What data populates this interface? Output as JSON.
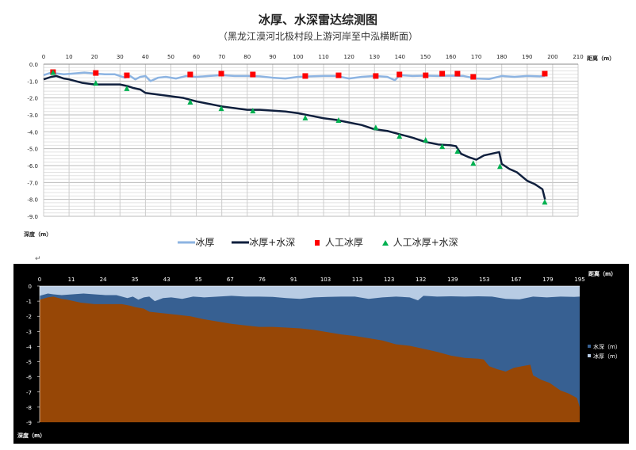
{
  "chart_data": [
    {
      "type": "line",
      "title": "冰厚、水深雷达综测图",
      "subtitle": "（黑龙江漠河北极村段上游河岸至中泓横断面）",
      "xlabel": "距离（m）",
      "ylabel": "深度（m）",
      "xlim": [
        0,
        210
      ],
      "ylim": [
        -9,
        0
      ],
      "xticks": [
        0,
        10,
        20,
        30,
        40,
        50,
        60,
        70,
        80,
        90,
        100,
        110,
        120,
        130,
        140,
        150,
        160,
        170,
        180,
        190,
        200,
        210
      ],
      "yticks": [
        "0.0",
        "-1.0",
        "-2.0",
        "-3.0",
        "-4.0",
        "-5.0",
        "-6.0",
        "-7.0",
        "-8.0",
        "-9.0"
      ],
      "grid": true,
      "legend_position": "bottom",
      "series": [
        {
          "name": "冰厚",
          "type": "line",
          "color": "#8db4e2",
          "x": [
            0,
            3,
            5,
            8,
            12,
            16,
            20,
            24,
            28,
            32,
            34,
            36,
            38,
            40,
            42,
            45,
            48,
            52,
            56,
            60,
            65,
            70,
            75,
            80,
            85,
            90,
            95,
            100,
            105,
            110,
            115,
            120,
            125,
            130,
            135,
            138,
            140,
            145,
            150,
            155,
            160,
            165,
            170,
            175,
            180,
            185,
            190,
            195,
            197
          ],
          "y": [
            -0.65,
            -0.5,
            -0.55,
            -0.6,
            -0.55,
            -0.5,
            -0.55,
            -0.6,
            -0.6,
            -0.8,
            -0.7,
            -0.9,
            -0.75,
            -0.7,
            -1.0,
            -0.8,
            -0.75,
            -0.85,
            -0.7,
            -0.75,
            -0.7,
            -0.65,
            -0.7,
            -0.7,
            -0.72,
            -0.8,
            -0.85,
            -0.75,
            -0.72,
            -0.7,
            -0.7,
            -0.85,
            -0.75,
            -0.7,
            -0.75,
            -0.95,
            -0.65,
            -0.7,
            -0.68,
            -0.7,
            -0.68,
            -0.7,
            -0.85,
            -0.88,
            -0.7,
            -0.75,
            -0.7,
            -0.72,
            -0.7
          ]
        },
        {
          "name": "冰厚+水深",
          "type": "line",
          "color": "#0f1f3d",
          "x": [
            0,
            3,
            5,
            8,
            10,
            15,
            20,
            25,
            30,
            33,
            35,
            38,
            40,
            45,
            50,
            55,
            60,
            65,
            70,
            75,
            80,
            85,
            90,
            95,
            100,
            105,
            110,
            115,
            120,
            125,
            130,
            135,
            140,
            145,
            150,
            155,
            160,
            162,
            164,
            167,
            170,
            173,
            176,
            179,
            180,
            183,
            186,
            190,
            193,
            196,
            197
          ],
          "y": [
            -0.9,
            -0.75,
            -0.7,
            -0.85,
            -0.9,
            -1.1,
            -1.2,
            -1.2,
            -1.2,
            -1.3,
            -1.4,
            -1.5,
            -1.7,
            -1.8,
            -1.9,
            -2.0,
            -2.2,
            -2.35,
            -2.5,
            -2.6,
            -2.7,
            -2.7,
            -2.75,
            -2.8,
            -2.9,
            -3.05,
            -3.2,
            -3.3,
            -3.45,
            -3.6,
            -3.85,
            -3.95,
            -4.15,
            -4.35,
            -4.6,
            -4.75,
            -4.8,
            -4.85,
            -5.3,
            -5.5,
            -5.65,
            -5.4,
            -5.3,
            -5.2,
            -5.9,
            -6.2,
            -6.4,
            -6.9,
            -7.1,
            -7.4,
            -8.0
          ]
        },
        {
          "name": "人工冰厚",
          "type": "scatter",
          "marker": "square",
          "color": "#ff0000",
          "x": [
            3.7,
            20.5,
            32.7,
            57.6,
            69.8,
            82.2,
            102.8,
            115.9,
            130.5,
            139.8,
            150.1,
            156.6,
            162.6,
            168.8,
            196.9
          ],
          "y": [
            -0.47,
            -0.52,
            -0.66,
            -0.61,
            -0.56,
            -0.61,
            -0.7,
            -0.66,
            -0.7,
            -0.61,
            -0.66,
            -0.56,
            -0.56,
            -0.75,
            -0.56
          ]
        },
        {
          "name": "人工冰厚+水深",
          "type": "scatter",
          "marker": "triangle",
          "color": "#00b050",
          "x": [
            3.7,
            20.5,
            32.7,
            57.6,
            69.8,
            82.2,
            102.8,
            115.9,
            130.5,
            139.8,
            150.1,
            156.6,
            162.6,
            168.8,
            179.3,
            196.9
          ],
          "y": [
            -0.5,
            -1.13,
            -1.45,
            -2.25,
            -2.63,
            -2.77,
            -3.19,
            -3.33,
            -3.76,
            -4.27,
            -4.5,
            -4.88,
            -5.16,
            -5.87,
            -6.06,
            -8.17
          ]
        }
      ]
    },
    {
      "type": "area",
      "xlabel": "距离（m）",
      "ylabel": "深度（m）",
      "ylim": [
        -9,
        0
      ],
      "categories": [
        "0",
        "11",
        "24",
        "35",
        "43",
        "55",
        "67",
        "76",
        "91",
        "103",
        "113",
        "123",
        "132",
        "139",
        "153",
        "167",
        "179",
        "195"
      ],
      "yticks": [
        "0",
        "-1",
        "-2",
        "-3",
        "-4",
        "-5",
        "-6",
        "-7",
        "-8",
        "-9"
      ],
      "legend_position": "right",
      "background": "#000000",
      "series": [
        {
          "name": "水深（m）",
          "color": "#376092"
        },
        {
          "name": "冰厚（m）",
          "color": "#b8cce4"
        }
      ],
      "bed_color": "#974706"
    }
  ]
}
